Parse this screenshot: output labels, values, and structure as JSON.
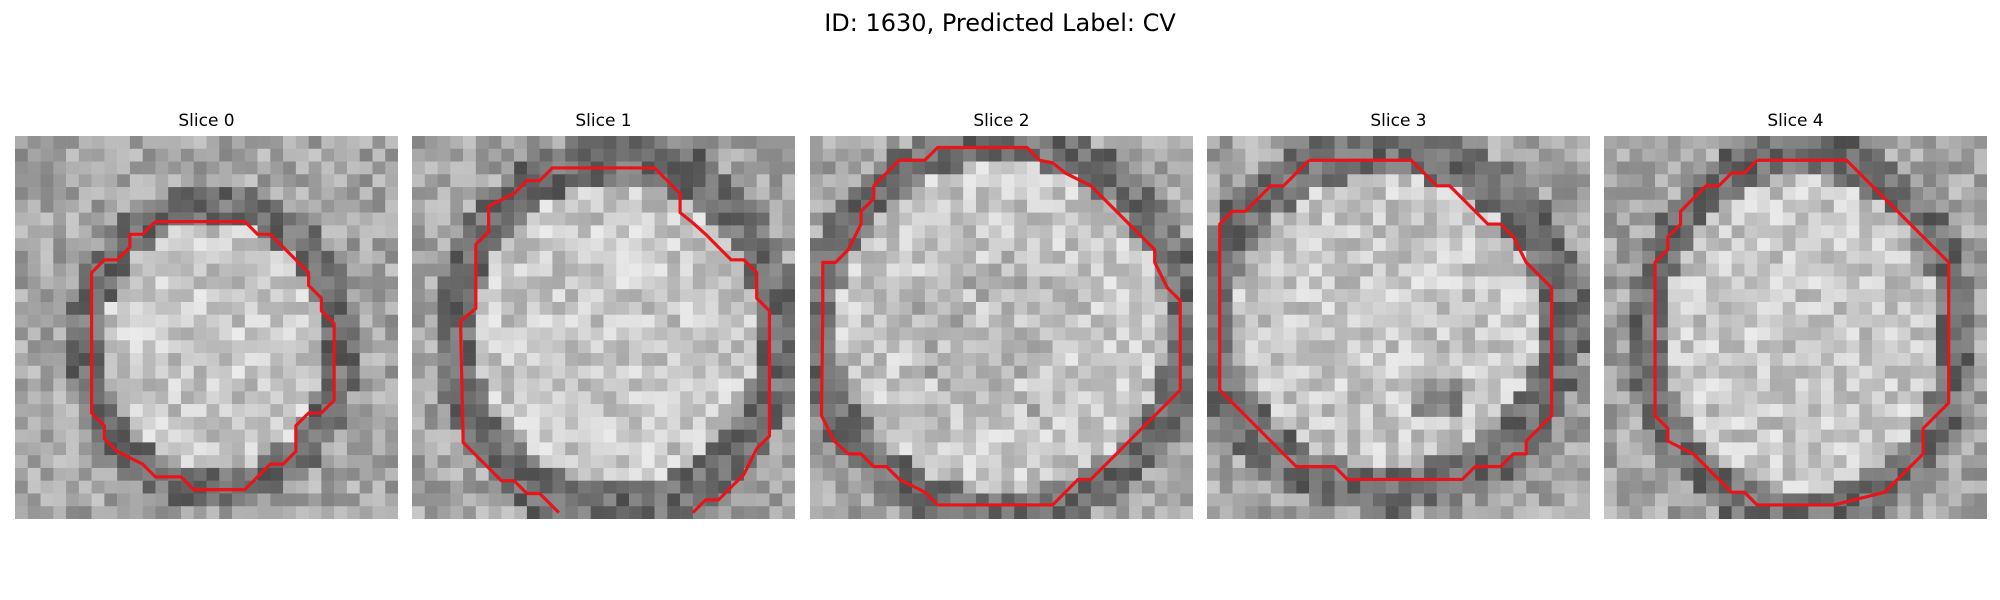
{
  "figure": {
    "title": "ID: 1630, Predicted Label: CV"
  },
  "contour_color": "#e8141a",
  "panels": [
    {
      "label": "Slice 0"
    },
    {
      "label": "Slice 1"
    },
    {
      "label": "Slice 2"
    },
    {
      "label": "Slice 3"
    },
    {
      "label": "Slice 4"
    }
  ]
}
